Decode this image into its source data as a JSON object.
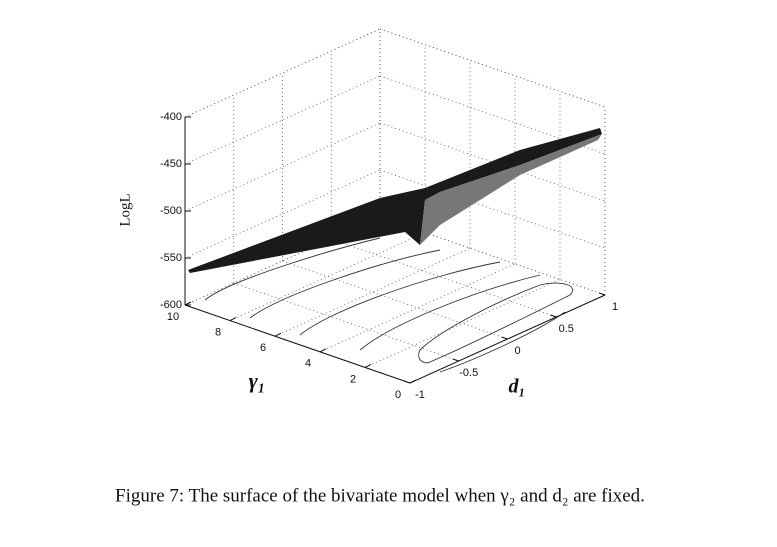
{
  "chart_data": {
    "type": "surface3d",
    "zlabel": "LogL",
    "xlabel": "γ₁",
    "ylabel": "d₁",
    "xlim": [
      0,
      10
    ],
    "xticks": [
      0,
      2,
      4,
      6,
      8,
      10
    ],
    "ylim": [
      -1,
      1
    ],
    "yticks": [
      -1,
      -0.5,
      0,
      0.5,
      1
    ],
    "zlim": [
      -600,
      -400
    ],
    "zticks": [
      -600,
      -550,
      -500,
      -450,
      -400
    ],
    "grid": true,
    "caption": "Figure 7: The surface of the bivariate model when γ₂ and d₂ are fixed."
  }
}
